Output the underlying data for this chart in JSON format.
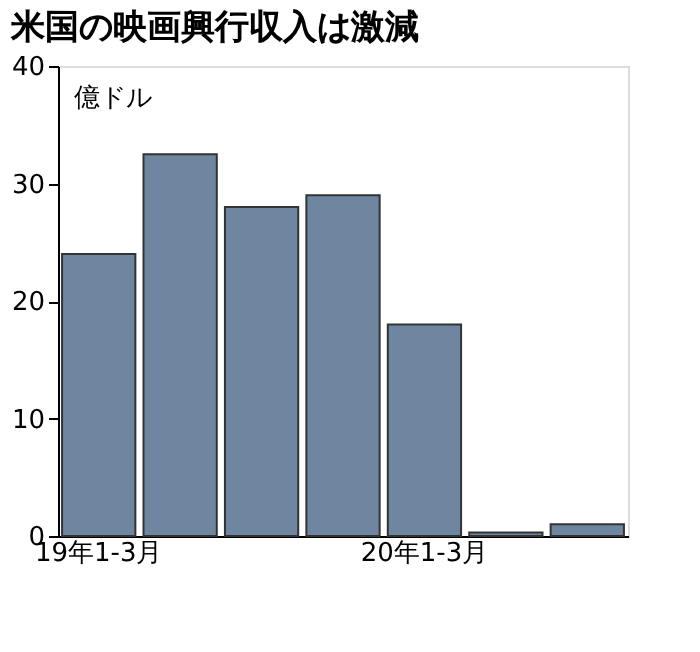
{
  "chart_data": {
    "type": "bar",
    "title": "米国の映画興行収入は激減",
    "ylabel": "億ドル",
    "categories": [
      "19年1-3月",
      null,
      null,
      null,
      "20年1-3月",
      null,
      null
    ],
    "values": [
      24,
      32.5,
      28,
      29,
      18,
      0.3,
      1.0
    ],
    "color": "#6f86a0",
    "ylim": [
      0,
      40
    ],
    "yticks": [
      0,
      10,
      20,
      30,
      40
    ],
    "grid": false
  }
}
